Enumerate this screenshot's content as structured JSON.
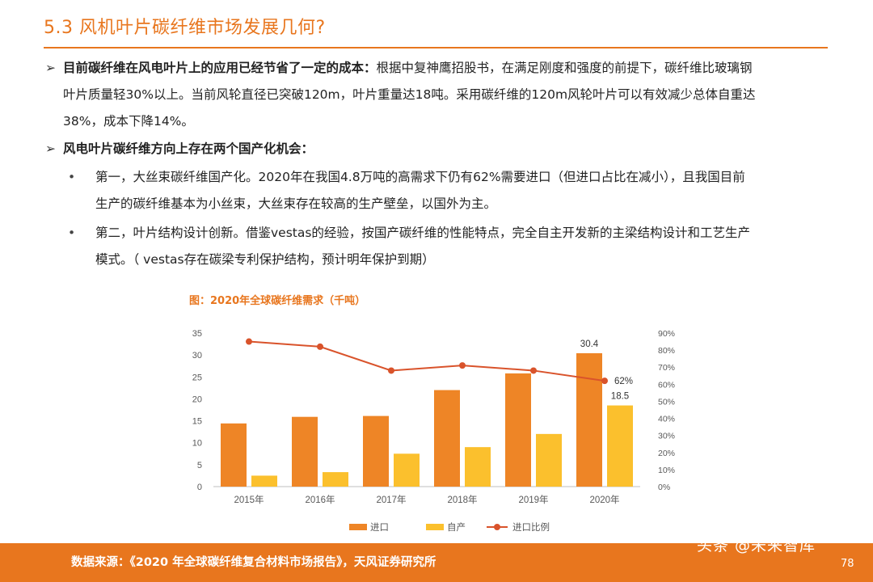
{
  "header": {
    "title": "5.3 风机叶片碳纤维市场发展几何?"
  },
  "points": [
    {
      "lead": "目前碳纤维在风电叶片上的应用已经节省了一定的成本：",
      "line1": "根据中复神鹰招股书，在满足刚度和强度的前提下，碳纤维比玻璃钢",
      "line2": "叶片质量轻30%以上。当前风轮直径已突破120m，叶片重量达18吨。采用碳纤维的120m风轮叶片可以有效减少总体自重达",
      "line3": "38%，成本下降14%。"
    },
    {
      "lead": "风电叶片碳纤维方向上存在两个国产化机会：",
      "subs": [
        {
          "line1": "第一，大丝束碳纤维国产化。2020年在我国4.8万吨的高需求下仍有62%需要进口（但进口占比在减小），且我国目前",
          "line2": "生产的碳纤维基本为小丝束，大丝束存在较高的生产壁垒，以国外为主。"
        },
        {
          "line1": "第二，叶片结构设计创新。借鉴vestas的经验，按国产碳纤维的性能特点，完全自主开发新的主梁结构设计和工艺生产",
          "line2": "模式。（ vestas存在碳梁专利保护结构，预计明年保护到期）"
        }
      ]
    }
  ],
  "chart_data": {
    "type": "bar",
    "title": "图：2020年全球碳纤维需求（千吨）",
    "categories": [
      "2015年",
      "2016年",
      "2017年",
      "2018年",
      "2019年",
      "2020年"
    ],
    "series": [
      {
        "name": "进口",
        "color": "#EE8526",
        "type": "bar",
        "values": [
          14.4,
          15.9,
          16.1,
          22.0,
          25.8,
          30.4
        ]
      },
      {
        "name": "自产",
        "color": "#FBC02D",
        "type": "bar",
        "values": [
          2.5,
          3.3,
          7.5,
          9.0,
          12.0,
          18.5
        ]
      },
      {
        "name": "进口比例",
        "color": "#D9532B",
        "type": "line",
        "axis": "right",
        "values": [
          0.85,
          0.82,
          0.68,
          0.71,
          0.68,
          0.62
        ]
      }
    ],
    "ylim": [
      0,
      35
    ],
    "yticks": [
      "0",
      "5",
      "10",
      "15",
      "20",
      "25",
      "30",
      "35"
    ],
    "y2lim": [
      0,
      0.9
    ],
    "y2ticks": [
      "0%",
      "10%",
      "20%",
      "30%",
      "40%",
      "50%",
      "60%",
      "70%",
      "80%",
      "90%"
    ],
    "annotations": [
      "30.4",
      "18.5",
      "62%"
    ],
    "legend": "bottom"
  },
  "footer": {
    "source": "数据来源：《2020 年全球碳纤维复合材料市场报告》，天风证券研究所",
    "watermark": "头条 @未来智库",
    "page": "78"
  }
}
